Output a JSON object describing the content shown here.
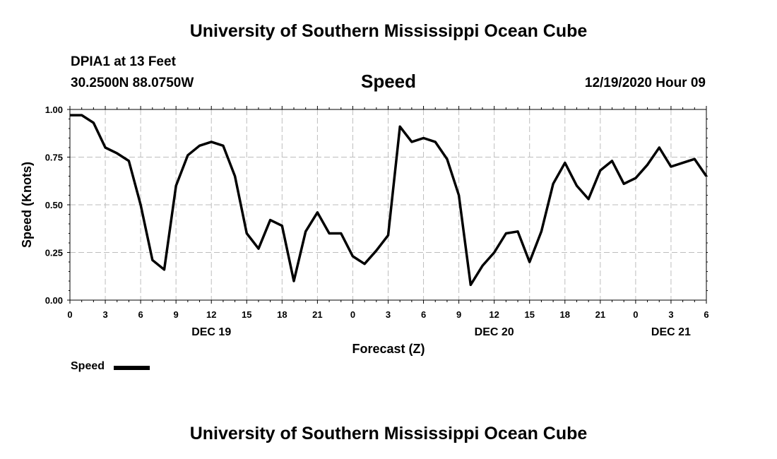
{
  "header": {
    "top_title": "University of Southern Mississippi Ocean Cube",
    "station": "DPIA1 at 13 Feet",
    "location": "30.2500N 88.0750W",
    "chart_title": "Speed",
    "timestamp": "12/19/2020 Hour 09",
    "bottom_title": "University of Southern Mississippi Ocean Cube"
  },
  "chart_data": {
    "type": "line",
    "title": "Speed",
    "xlabel": "Forecast (Z)",
    "ylabel": "Speed (Knots)",
    "ylim": [
      0,
      1
    ],
    "y_ticks": [
      "0.00",
      "0.25",
      "0.50",
      "0.75",
      "1.00"
    ],
    "y_tick_values": [
      0,
      0.25,
      0.5,
      0.75,
      1.0
    ],
    "x_range_hours": [
      0,
      54
    ],
    "x_tick_labels": [
      "0",
      "3",
      "6",
      "9",
      "12",
      "15",
      "18",
      "21",
      "0",
      "3",
      "6",
      "9",
      "12",
      "15",
      "18",
      "21",
      "0",
      "3",
      "6"
    ],
    "day_labels": [
      {
        "label": "DEC 19",
        "hour": 12
      },
      {
        "label": "DEC 20",
        "hour": 36
      },
      {
        "label": "DEC 21",
        "hour": 51
      }
    ],
    "grid": true,
    "legend_placement": "bottom-left",
    "series": [
      {
        "name": "Speed",
        "color": "#000000",
        "x": [
          0,
          1,
          2,
          3,
          4,
          5,
          6,
          7,
          8,
          9,
          10,
          11,
          12,
          13,
          14,
          15,
          16,
          17,
          18,
          19,
          20,
          21,
          22,
          23,
          24,
          25,
          26,
          27,
          28,
          29,
          30,
          31,
          32,
          33,
          34,
          35,
          36,
          37,
          38,
          39,
          40,
          41,
          42,
          43,
          44,
          45,
          46,
          47,
          48,
          49,
          50,
          51,
          52,
          53,
          54
        ],
        "values": [
          0.97,
          0.97,
          0.93,
          0.8,
          0.77,
          0.73,
          0.5,
          0.21,
          0.16,
          0.6,
          0.76,
          0.81,
          0.83,
          0.81,
          0.65,
          0.35,
          0.27,
          0.42,
          0.39,
          0.1,
          0.36,
          0.46,
          0.35,
          0.35,
          0.23,
          0.19,
          0.26,
          0.34,
          0.91,
          0.83,
          0.85,
          0.83,
          0.74,
          0.55,
          0.08,
          0.18,
          0.25,
          0.35,
          0.36,
          0.2,
          0.36,
          0.61,
          0.72,
          0.6,
          0.53,
          0.68,
          0.73,
          0.61,
          0.64,
          0.71,
          0.8,
          0.7,
          0.72,
          0.74,
          0.65
        ]
      }
    ]
  },
  "legend": {
    "label": "Speed"
  }
}
